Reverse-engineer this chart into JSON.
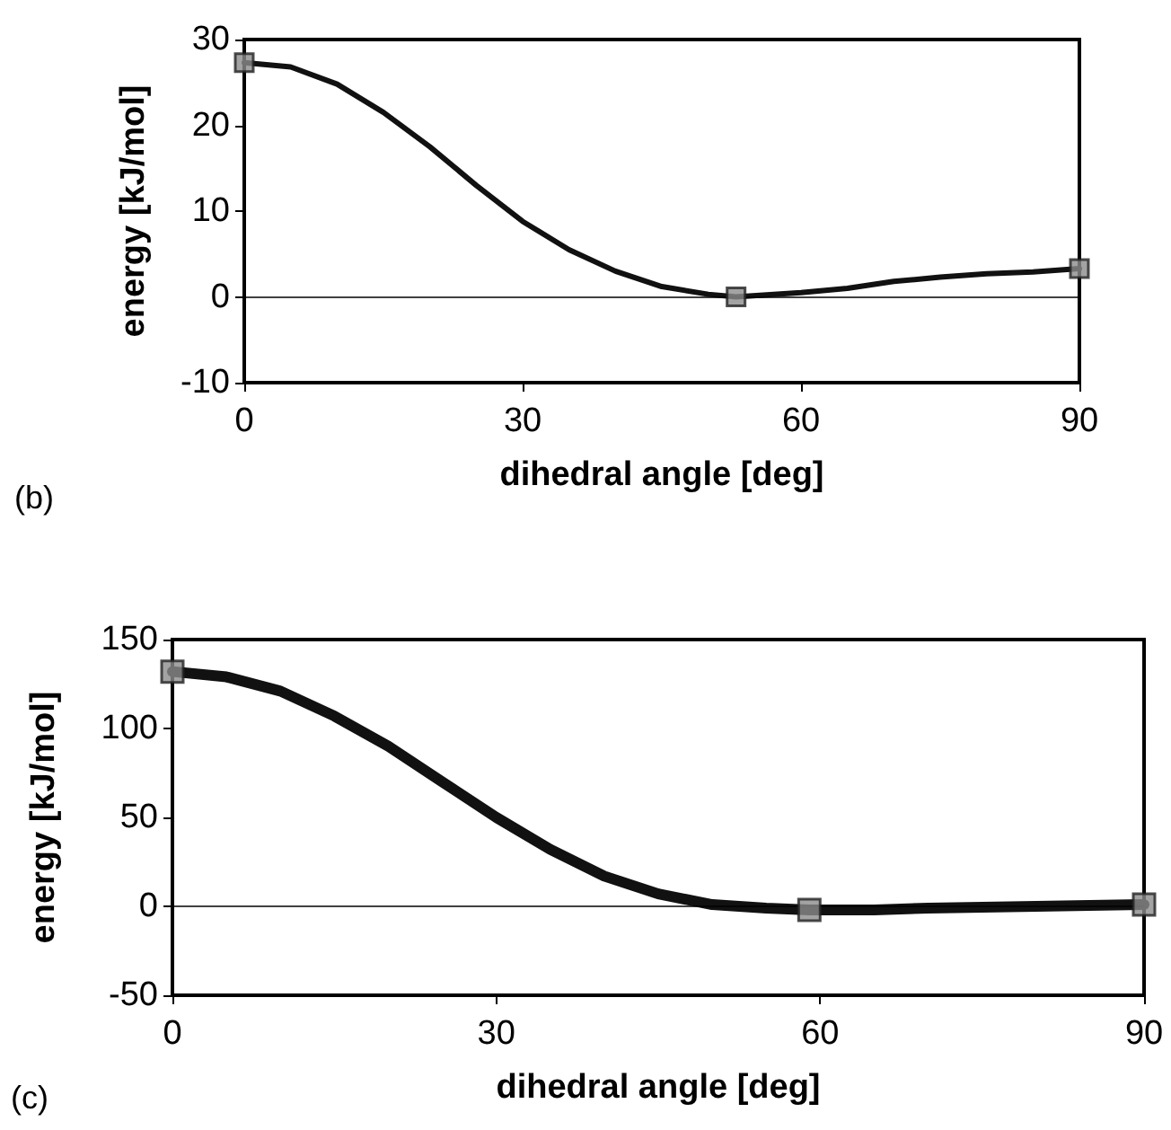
{
  "chart_data": [
    {
      "type": "line",
      "xlabel": "dihedral angle [deg]",
      "ylabel": "energy [kJ/mol]",
      "annotations": [
        "(b)"
      ],
      "xlim": [
        0,
        90
      ],
      "xticks": [
        0,
        30,
        60,
        90
      ],
      "ylim": [
        -10,
        30
      ],
      "yticks": [
        -10,
        0,
        10,
        20,
        30
      ],
      "grid": false,
      "ref_lines": [
        {
          "axis": "y",
          "value": 0,
          "color": "#000000"
        }
      ],
      "series": [
        {
          "color": "#111111",
          "marker": "none",
          "x": [
            0,
            5,
            10,
            15,
            20,
            25,
            30,
            35,
            40,
            45,
            50,
            53,
            60,
            65,
            70,
            75,
            80,
            85,
            90
          ],
          "values": [
            27.3,
            26.8,
            24.8,
            21.5,
            17.5,
            13,
            8.8,
            5.5,
            3,
            1.2,
            0.3,
            0,
            0.5,
            1,
            1.8,
            2.3,
            2.7,
            2.9,
            3.3
          ]
        },
        {
          "type": "scatter",
          "color": "#8c8c8c",
          "marker": "square",
          "x": [
            0,
            53,
            90
          ],
          "values": [
            27.3,
            0,
            3.3
          ]
        }
      ]
    },
    {
      "type": "line",
      "xlabel": "dihedral angle [deg]",
      "ylabel": "energy [kJ/mol]",
      "annotations": [
        "(c)"
      ],
      "xlim": [
        0,
        90
      ],
      "xticks": [
        0,
        30,
        60,
        90
      ],
      "ylim": [
        -50,
        150
      ],
      "yticks": [
        -50,
        0,
        50,
        100,
        150
      ],
      "grid": false,
      "ref_lines": [
        {
          "axis": "y",
          "value": 0,
          "color": "#000000"
        }
      ],
      "series": [
        {
          "color": "#111111",
          "marker": "none",
          "x": [
            0,
            5,
            10,
            15,
            20,
            25,
            30,
            35,
            40,
            45,
            50,
            55,
            59,
            65,
            70,
            80,
            90
          ],
          "values": [
            132,
            129,
            121,
            107,
            90,
            70,
            50,
            32,
            17,
            7,
            1,
            -1,
            -2,
            -2,
            -1,
            0,
            1
          ]
        },
        {
          "type": "scatter",
          "color": "#8c8c8c",
          "marker": "square",
          "x": [
            0,
            59,
            90
          ],
          "values": [
            132,
            -2,
            1
          ]
        }
      ]
    }
  ]
}
